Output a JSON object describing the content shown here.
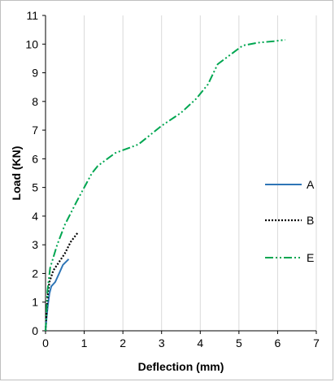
{
  "chart_data": {
    "type": "line",
    "title": "",
    "xlabel": "Deflection (mm)",
    "ylabel": "Load (KN)",
    "xlim": [
      0,
      7
    ],
    "ylim": [
      0,
      11
    ],
    "x_ticks": [
      0,
      1,
      2,
      3,
      4,
      5,
      6,
      7
    ],
    "y_ticks": [
      0,
      1,
      2,
      3,
      4,
      5,
      6,
      7,
      8,
      9,
      10,
      11
    ],
    "grid": "vertical",
    "legend_position": "right",
    "series": [
      {
        "name": "A",
        "color": "#2e75b6",
        "style": "solid",
        "points": [
          [
            0,
            0
          ],
          [
            0.03,
            0.5
          ],
          [
            0.06,
            0.9
          ],
          [
            0.1,
            1.3
          ],
          [
            0.15,
            1.55
          ],
          [
            0.25,
            1.7
          ],
          [
            0.35,
            2.0
          ],
          [
            0.45,
            2.3
          ],
          [
            0.6,
            2.5
          ]
        ]
      },
      {
        "name": "B",
        "color": "#000000",
        "style": "dotted",
        "points": [
          [
            0,
            0
          ],
          [
            0.03,
            0.7
          ],
          [
            0.06,
            1.3
          ],
          [
            0.1,
            1.7
          ],
          [
            0.2,
            2.1
          ],
          [
            0.35,
            2.4
          ],
          [
            0.5,
            2.7
          ],
          [
            0.65,
            3.1
          ],
          [
            0.85,
            3.45
          ]
        ]
      },
      {
        "name": "E",
        "color": "#00a651",
        "style": "dashdotdot",
        "points": [
          [
            0,
            0
          ],
          [
            0.05,
            1.4
          ],
          [
            0.12,
            2.2
          ],
          [
            0.3,
            3.0
          ],
          [
            0.5,
            3.7
          ],
          [
            0.8,
            4.5
          ],
          [
            1.0,
            5.0
          ],
          [
            1.2,
            5.5
          ],
          [
            1.35,
            5.75
          ],
          [
            1.8,
            6.2
          ],
          [
            2.4,
            6.5
          ],
          [
            3.0,
            7.15
          ],
          [
            3.5,
            7.6
          ],
          [
            3.9,
            8.1
          ],
          [
            4.2,
            8.6
          ],
          [
            4.45,
            9.3
          ],
          [
            4.8,
            9.65
          ],
          [
            5.1,
            9.95
          ],
          [
            5.5,
            10.05
          ],
          [
            5.9,
            10.1
          ],
          [
            6.2,
            10.15
          ]
        ]
      }
    ]
  }
}
